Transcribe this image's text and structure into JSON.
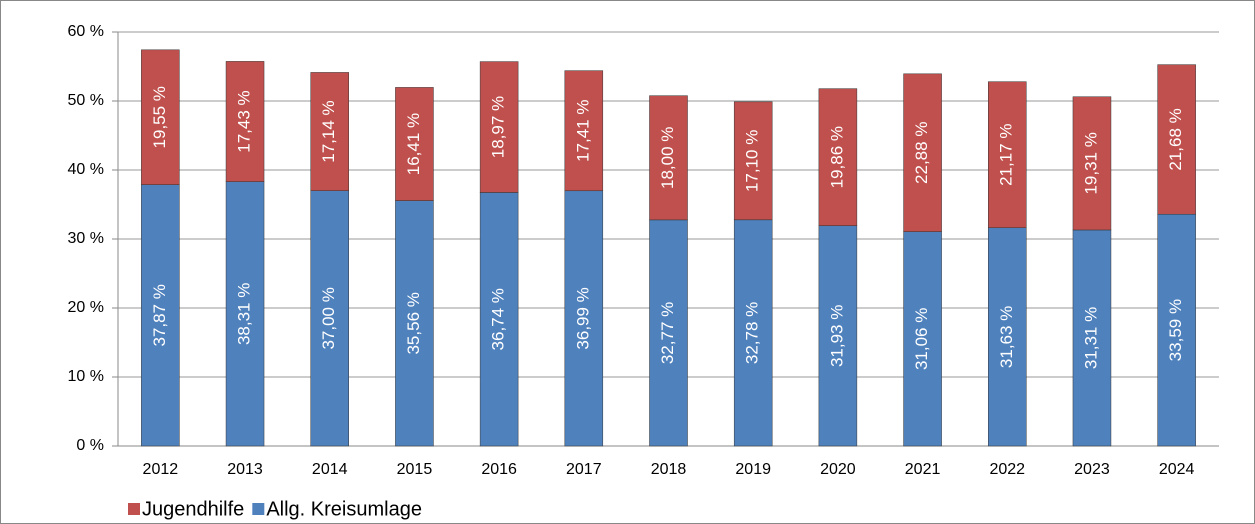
{
  "chart_data": {
    "type": "stacked_bar",
    "categories": [
      "2012",
      "2013",
      "2014",
      "2015",
      "2016",
      "2017",
      "2018",
      "2019",
      "2020",
      "2021",
      "2022",
      "2023",
      "2024"
    ],
    "series": [
      {
        "name": "Allg. Kreisumlage",
        "color": "#4f81bd",
        "values": [
          37.87,
          38.31,
          37.0,
          35.56,
          36.74,
          36.99,
          32.77,
          32.78,
          31.93,
          31.06,
          31.63,
          31.31,
          33.59
        ],
        "value_labels": [
          "37,87 %",
          "38,31 %",
          "37,00 %",
          "35,56 %",
          "36,74 %",
          "36,99 %",
          "32,77 %",
          "32,78 %",
          "31,93 %",
          "31,06 %",
          "31,63 %",
          "31,31 %",
          "33,59 %"
        ]
      },
      {
        "name": "Jugendhilfe",
        "color": "#c0504d",
        "values": [
          19.55,
          17.43,
          17.14,
          16.41,
          18.97,
          17.41,
          18.0,
          17.1,
          19.86,
          22.88,
          21.17,
          19.31,
          21.68
        ],
        "value_labels": [
          "19,55 %",
          "17,43 %",
          "17,14 %",
          "16,41 %",
          "18,97 %",
          "17,41 %",
          "18,00 %",
          "17,10 %",
          "19,86 %",
          "22,88 %",
          "21,17 %",
          "19,31 %",
          "21,68 %"
        ]
      }
    ],
    "ylim": [
      0,
      60
    ],
    "yticks": [
      {
        "value": 0,
        "label": "0 %"
      },
      {
        "value": 10,
        "label": "10 %"
      },
      {
        "value": 20,
        "label": "20 %"
      },
      {
        "value": 30,
        "label": "30 %"
      },
      {
        "value": 40,
        "label": "40 %"
      },
      {
        "value": 50,
        "label": "50 %"
      },
      {
        "value": 60,
        "label": "60 %"
      }
    ],
    "grid": true,
    "legend": "bottom-left"
  }
}
